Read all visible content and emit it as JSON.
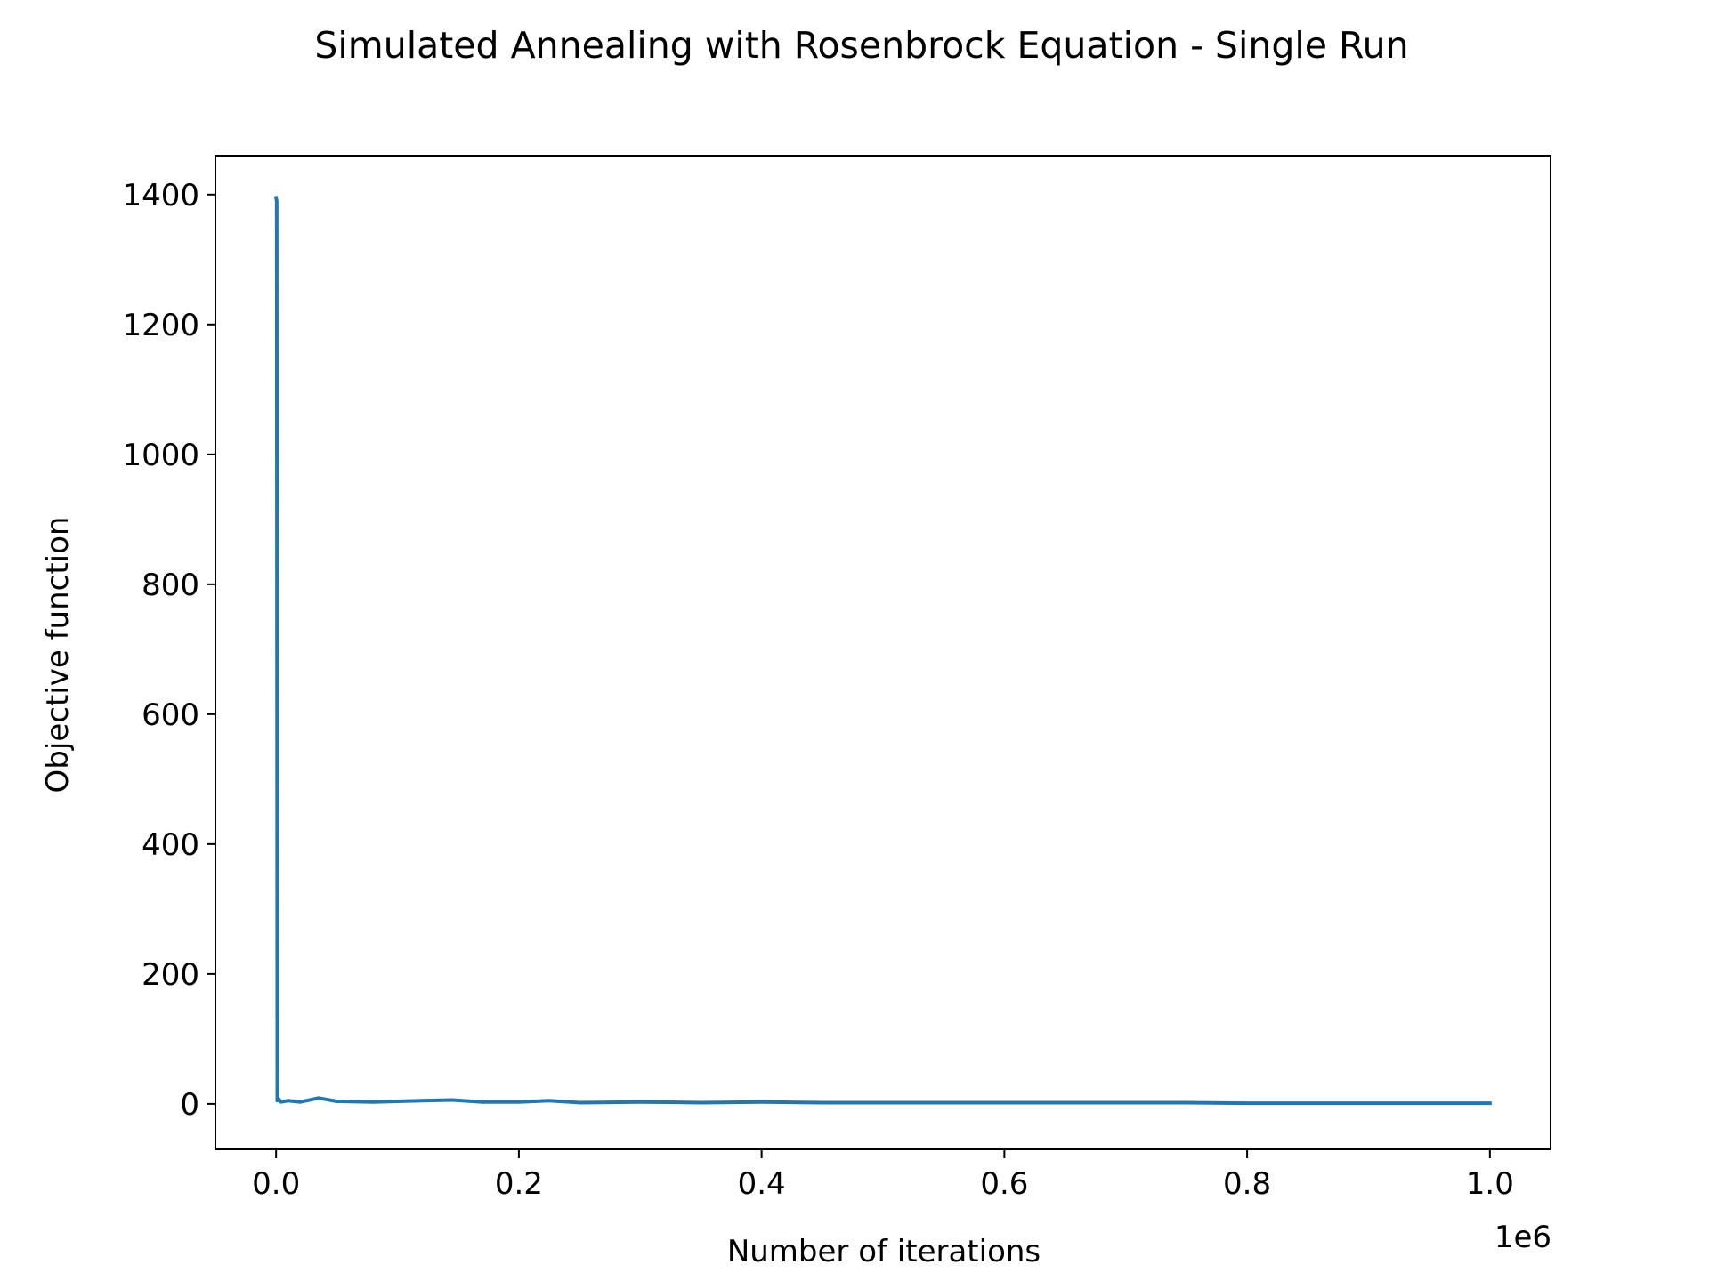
{
  "chart_data": {
    "type": "line",
    "title": "Simulated Annealing with Rosenbrock Equation - Single Run",
    "xlabel": "Number of iterations",
    "ylabel": "Objective function",
    "x_offset_label": "1e6",
    "xlim": [
      -0.05,
      1.05
    ],
    "ylim": [
      -70,
      1460
    ],
    "xticks": [
      0.0,
      0.2,
      0.4,
      0.6,
      0.8,
      1.0
    ],
    "xtick_labels": [
      "0.0",
      "0.2",
      "0.4",
      "0.6",
      "0.8",
      "1.0"
    ],
    "yticks": [
      0,
      200,
      400,
      600,
      800,
      1000,
      1200,
      1400
    ],
    "ytick_labels": [
      "0",
      "200",
      "400",
      "600",
      "800",
      "1000",
      "1200",
      "1400"
    ],
    "grid": false,
    "legend": "none",
    "series": [
      {
        "color": "#1f77b4",
        "x": [
          0.0,
          0.0005,
          0.001,
          0.002,
          0.004,
          0.01,
          0.02,
          0.035,
          0.05,
          0.08,
          0.1,
          0.12,
          0.145,
          0.17,
          0.2,
          0.225,
          0.25,
          0.3,
          0.35,
          0.4,
          0.45,
          0.5,
          0.55,
          0.6,
          0.65,
          0.7,
          0.75,
          0.8,
          0.85,
          0.9,
          0.95,
          1.0
        ],
        "y": [
          1395,
          1390,
          5,
          8,
          3,
          5,
          3,
          9,
          4,
          3,
          4,
          5,
          6,
          3,
          3,
          5,
          2,
          3,
          2,
          3,
          2,
          2,
          2,
          2,
          2,
          2,
          2,
          1,
          1,
          1,
          1,
          1
        ]
      }
    ]
  }
}
